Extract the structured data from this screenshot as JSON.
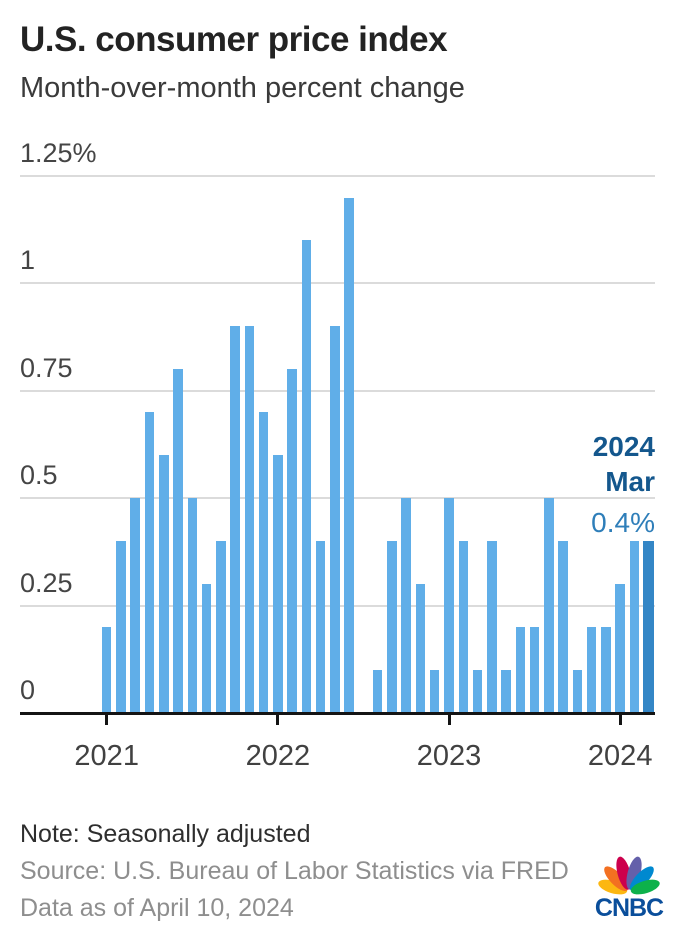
{
  "header": {
    "title": "U.S. consumer price index",
    "subtitle": "Month-over-month percent change"
  },
  "chart_data": {
    "type": "bar",
    "title": "U.S. consumer price index",
    "subtitle": "Month-over-month percent change",
    "unit": "percent",
    "categories": [
      "Jan 2021",
      "Feb 2021",
      "Mar 2021",
      "Apr 2021",
      "May 2021",
      "Jun 2021",
      "Jul 2021",
      "Aug 2021",
      "Sep 2021",
      "Oct 2021",
      "Nov 2021",
      "Dec 2021",
      "Jan 2022",
      "Feb 2022",
      "Mar 2022",
      "Apr 2022",
      "May 2022",
      "Jun 2022",
      "Jul 2022",
      "Aug 2022",
      "Sep 2022",
      "Oct 2022",
      "Nov 2022",
      "Dec 2022",
      "Jan 2023",
      "Feb 2023",
      "Mar 2023",
      "Apr 2023",
      "May 2023",
      "Jun 2023",
      "Jul 2023",
      "Aug 2023",
      "Sep 2023",
      "Oct 2023",
      "Nov 2023",
      "Dec 2023",
      "Jan 2024",
      "Feb 2024",
      "Mar 2024"
    ],
    "values": [
      0.2,
      0.4,
      0.5,
      0.7,
      0.6,
      0.8,
      0.5,
      0.3,
      0.4,
      0.9,
      0.9,
      0.7,
      0.6,
      0.8,
      1.1,
      0.4,
      0.9,
      1.2,
      0.0,
      0.1,
      0.4,
      0.5,
      0.3,
      0.1,
      0.5,
      0.4,
      0.1,
      0.4,
      0.1,
      0.2,
      0.2,
      0.5,
      0.4,
      0.1,
      0.2,
      0.2,
      0.3,
      0.4,
      0.4
    ],
    "highlight_index": 38,
    "ylim": [
      0,
      1.25
    ],
    "grid": true,
    "y_ticks": [
      {
        "value": 1.25,
        "label": "1.25%"
      },
      {
        "value": 1.0,
        "label": "1"
      },
      {
        "value": 0.75,
        "label": "0.75"
      },
      {
        "value": 0.5,
        "label": "0.5"
      },
      {
        "value": 0.25,
        "label": "0.25"
      },
      {
        "value": 0,
        "label": "0"
      }
    ],
    "x_ticks": [
      {
        "index": 0,
        "label": "2021"
      },
      {
        "index": 12,
        "label": "2022"
      },
      {
        "index": 24,
        "label": "2023"
      },
      {
        "index": 36,
        "label": "2024"
      }
    ],
    "annotation": {
      "year": "2024",
      "month": "Mar",
      "value": "0.4%"
    },
    "colors": {
      "bar": "#60AEE8",
      "bar_highlight": "#3486C6",
      "gridline": "#DBDBDB",
      "axis": "#141414",
      "annotation_strong": "#14578D",
      "annotation_value": "#2E7EB9"
    }
  },
  "footer": {
    "note": "Note: Seasonally adjusted",
    "source": "Source: U.S. Bureau of Labor Statistics via FRED",
    "data_as_of": "Data as of April 10, 2024"
  },
  "logo": {
    "wordmark": "CNBC",
    "wordmark_color": "#0A4E9B",
    "feather_colors": [
      "#FCB711",
      "#F37021",
      "#CC004C",
      "#6460AA",
      "#0089D0",
      "#0DB14B"
    ]
  }
}
